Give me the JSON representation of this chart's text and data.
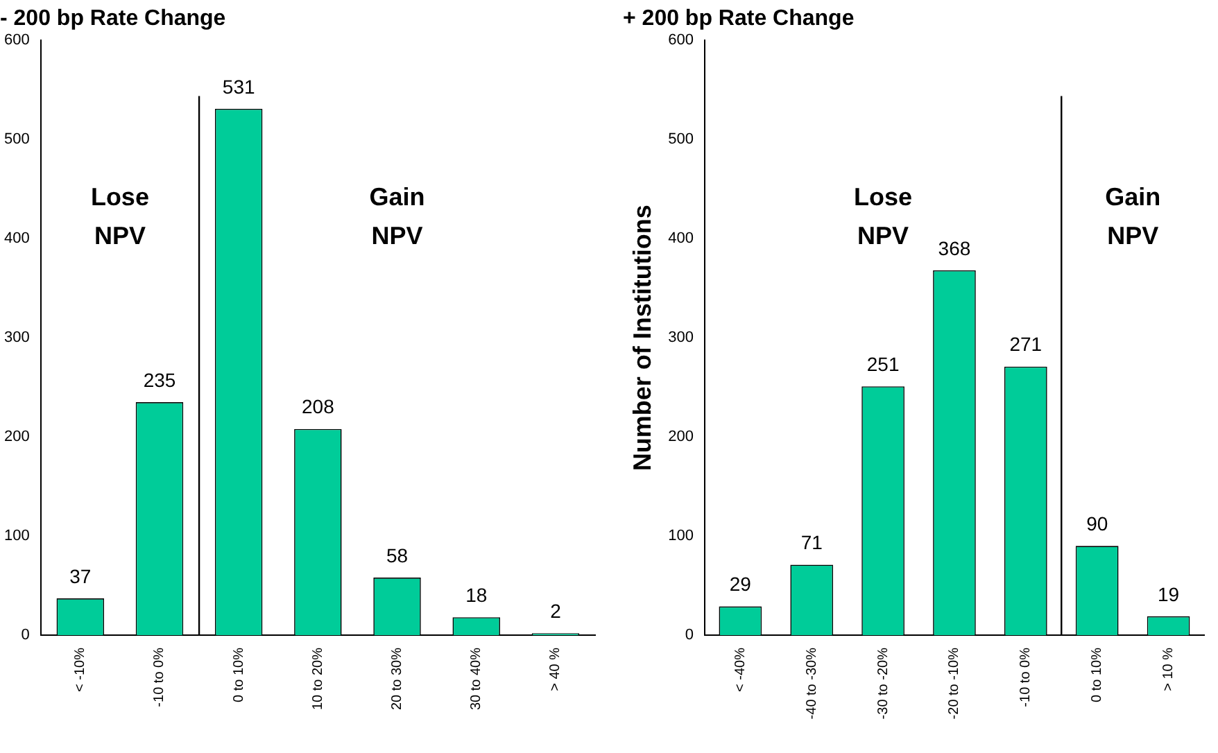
{
  "chart_data": [
    {
      "type": "bar",
      "title": "- 200 bp Rate Change",
      "categories": [
        "< -10%",
        "-10 to 0%",
        "0 to 10%",
        "10 to 20%",
        "20 to 30%",
        "30 to 40%",
        "> 40 %"
      ],
      "values": [
        37,
        235,
        531,
        208,
        58,
        18,
        2
      ],
      "color": "#00cc99",
      "ylim": [
        0,
        600
      ],
      "yticks": [
        0,
        100,
        200,
        300,
        400,
        500,
        600
      ],
      "grid": false,
      "legend": false,
      "data_labels": true,
      "annotations": [
        "Lose\nNPV",
        "Gain\nNPV"
      ]
    },
    {
      "type": "bar",
      "title": "+ 200 bp Rate Change",
      "ylabel": "Number of Institutions",
      "categories": [
        "< -40%",
        "-40 to -30%",
        "-30 to -20%",
        "-20 to -10%",
        "-10 to 0%",
        "0 to 10%",
        "> 10 %"
      ],
      "values": [
        29,
        71,
        251,
        368,
        271,
        90,
        19
      ],
      "color": "#00cc99",
      "ylim": [
        0,
        600
      ],
      "yticks": [
        0,
        100,
        200,
        300,
        400,
        500,
        600
      ],
      "grid": false,
      "legend": false,
      "data_labels": true,
      "annotations": [
        "Lose\nNPV",
        "Gain\nNPV"
      ]
    }
  ]
}
